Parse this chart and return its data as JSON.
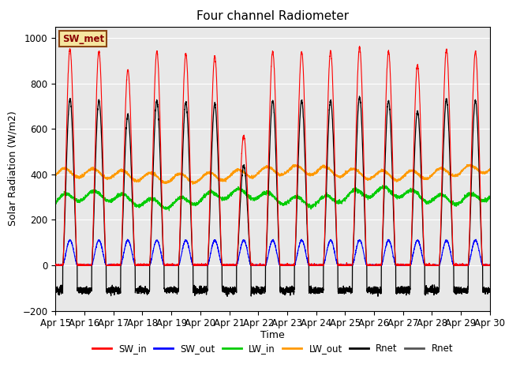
{
  "title": "Four channel Radiometer",
  "xlabel": "Time",
  "ylabel": "Solar Radiation (W/m2)",
  "ylim": [
    -200,
    1050
  ],
  "xlim": [
    0,
    15
  ],
  "bg_color": "#e8e8e8",
  "annotation_text": "SW_met",
  "annotation_color": "#8B0000",
  "annotation_bg": "#f5e6a0",
  "annotation_border": "#8B4513",
  "xtick_labels": [
    "Apr 15",
    "Apr 16",
    "Apr 17",
    "Apr 18",
    "Apr 19",
    "Apr 20",
    "Apr 21",
    "Apr 22",
    "Apr 23",
    "Apr 24",
    "Apr 25",
    "Apr 26",
    "Apr 27",
    "Apr 28",
    "Apr 29",
    "Apr 30"
  ],
  "ytick_values": [
    -200,
    0,
    200,
    400,
    600,
    800,
    1000
  ],
  "legend_entries": [
    {
      "label": "SW_in",
      "color": "#ff0000"
    },
    {
      "label": "SW_out",
      "color": "#0000ff"
    },
    {
      "label": "LW_in",
      "color": "#00cc00"
    },
    {
      "label": "LW_out",
      "color": "#ff9900"
    },
    {
      "label": "Rnet",
      "color": "#000000"
    },
    {
      "label": "Rnet",
      "color": "#555555"
    }
  ],
  "n_days": 15,
  "pts_per_day": 288
}
